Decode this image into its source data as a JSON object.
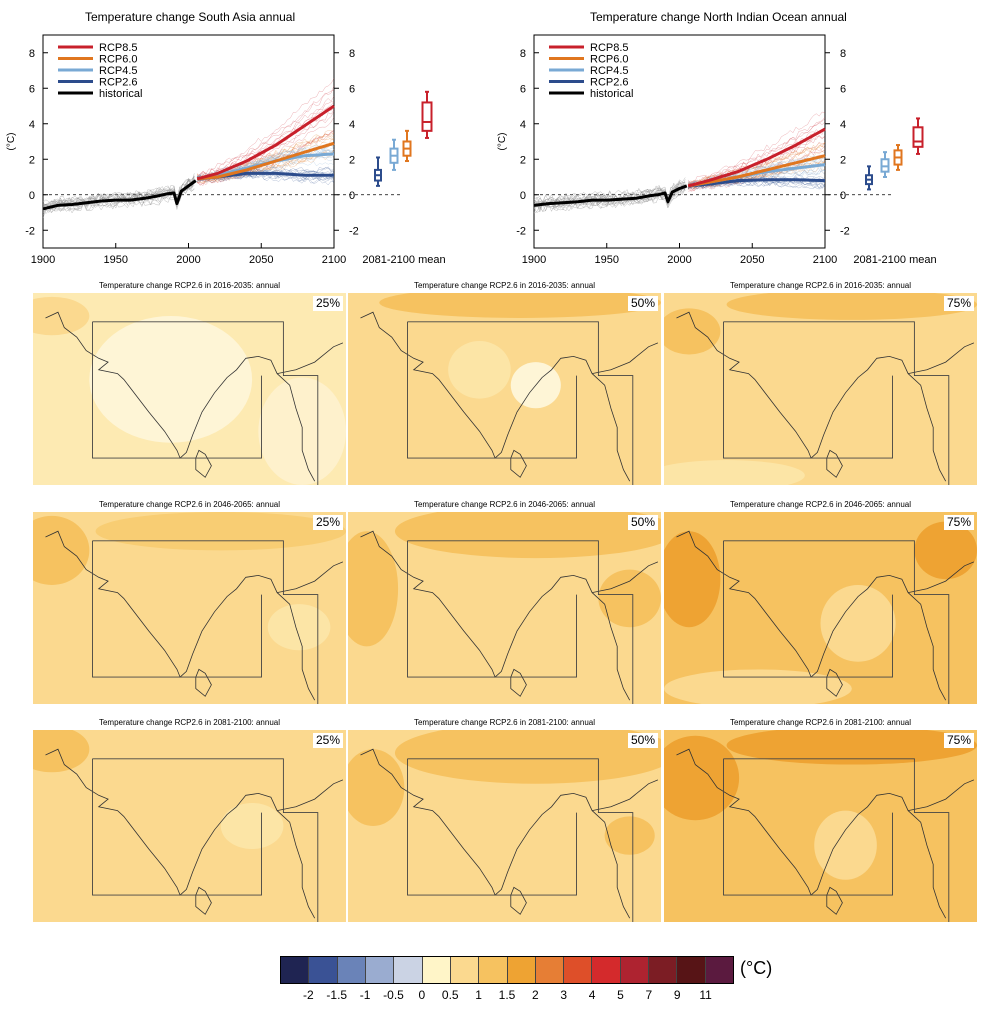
{
  "chart_data": [
    {
      "type": "line",
      "title": "Temperature change South Asia annual",
      "ylabel": "(°C)",
      "xlim": [
        1900,
        2100
      ],
      "ylim": [
        -3,
        9
      ],
      "xticks": [
        "1900",
        "1950",
        "2000",
        "2050",
        "2100"
      ],
      "yticks": [
        "-2",
        "0",
        "2",
        "4",
        "6",
        "8"
      ],
      "box_label": "2081-2100 mean",
      "legend_position": "top-left",
      "series": [
        {
          "name": "RCP8.5",
          "color": "#c8202b",
          "x": [
            2006,
            2020,
            2040,
            2060,
            2080,
            2100
          ],
          "y": [
            0.9,
            1.2,
            1.9,
            2.8,
            3.9,
            5.0
          ]
        },
        {
          "name": "RCP6.0",
          "color": "#e0761f",
          "x": [
            2006,
            2020,
            2040,
            2060,
            2080,
            2100
          ],
          "y": [
            0.9,
            1.0,
            1.4,
            1.9,
            2.4,
            2.9
          ]
        },
        {
          "name": "RCP4.5",
          "color": "#79a9d4",
          "x": [
            2006,
            2020,
            2040,
            2060,
            2080,
            2100
          ],
          "y": [
            0.9,
            1.1,
            1.5,
            1.9,
            2.2,
            2.3
          ]
        },
        {
          "name": "RCP2.6",
          "color": "#2c4c8c",
          "x": [
            2006,
            2020,
            2040,
            2060,
            2080,
            2100
          ],
          "y": [
            0.9,
            1.0,
            1.2,
            1.2,
            1.1,
            1.1
          ]
        },
        {
          "name": "historical",
          "color": "#000000",
          "x": [
            1900,
            1910,
            1920,
            1930,
            1940,
            1950,
            1960,
            1970,
            1980,
            1985,
            1990,
            1992,
            1995,
            2000,
            2005
          ],
          "y": [
            -0.8,
            -0.6,
            -0.55,
            -0.45,
            -0.35,
            -0.3,
            -0.3,
            -0.2,
            -0.05,
            0.05,
            0.1,
            -0.5,
            0.2,
            0.5,
            0.8
          ]
        }
      ],
      "boxes": [
        {
          "name": "RCP2.6",
          "min": 0.5,
          "q1": 0.8,
          "median": 1.1,
          "q3": 1.4,
          "max": 2.1
        },
        {
          "name": "RCP4.5",
          "min": 1.4,
          "q1": 1.8,
          "median": 2.2,
          "q3": 2.6,
          "max": 3.1
        },
        {
          "name": "RCP6.0",
          "min": 1.9,
          "q1": 2.2,
          "median": 2.6,
          "q3": 3.0,
          "max": 3.6
        },
        {
          "name": "RCP8.5",
          "min": 3.2,
          "q1": 3.6,
          "median": 4.1,
          "q3": 5.2,
          "max": 5.8
        }
      ]
    },
    {
      "type": "line",
      "title": "Temperature change North Indian Ocean annual",
      "ylabel": "(°C)",
      "xlim": [
        1900,
        2100
      ],
      "ylim": [
        -3,
        9
      ],
      "xticks": [
        "1900",
        "1950",
        "2000",
        "2050",
        "2100"
      ],
      "yticks": [
        "-2",
        "0",
        "2",
        "4",
        "6",
        "8"
      ],
      "box_label": "2081-2100 mean",
      "legend_position": "top-left",
      "series": [
        {
          "name": "RCP8.5",
          "color": "#c8202b",
          "x": [
            2006,
            2020,
            2040,
            2060,
            2080,
            2100
          ],
          "y": [
            0.5,
            0.8,
            1.3,
            2.0,
            2.8,
            3.7
          ]
        },
        {
          "name": "RCP6.0",
          "color": "#e0761f",
          "x": [
            2006,
            2020,
            2040,
            2060,
            2080,
            2100
          ],
          "y": [
            0.5,
            0.7,
            1.0,
            1.4,
            1.8,
            2.2
          ]
        },
        {
          "name": "RCP4.5",
          "color": "#79a9d4",
          "x": [
            2006,
            2020,
            2040,
            2060,
            2080,
            2100
          ],
          "y": [
            0.5,
            0.7,
            1.0,
            1.3,
            1.5,
            1.7
          ]
        },
        {
          "name": "RCP2.6",
          "color": "#2c4c8c",
          "x": [
            2006,
            2020,
            2040,
            2060,
            2080,
            2100
          ],
          "y": [
            0.5,
            0.6,
            0.8,
            0.85,
            0.85,
            0.8
          ]
        },
        {
          "name": "historical",
          "color": "#000000",
          "x": [
            1900,
            1910,
            1920,
            1930,
            1940,
            1950,
            1960,
            1970,
            1980,
            1985,
            1990,
            1992,
            1995,
            2000,
            2005
          ],
          "y": [
            -0.6,
            -0.5,
            -0.45,
            -0.4,
            -0.3,
            -0.3,
            -0.25,
            -0.2,
            -0.05,
            0.0,
            0.1,
            -0.4,
            0.15,
            0.35,
            0.5
          ]
        }
      ],
      "boxes": [
        {
          "name": "RCP2.6",
          "min": 0.3,
          "q1": 0.6,
          "median": 0.85,
          "q3": 1.1,
          "max": 1.6
        },
        {
          "name": "RCP4.5",
          "min": 1.0,
          "q1": 1.3,
          "median": 1.6,
          "q3": 2.0,
          "max": 2.4
        },
        {
          "name": "RCP6.0",
          "min": 1.4,
          "q1": 1.7,
          "median": 2.1,
          "q3": 2.5,
          "max": 2.8
        },
        {
          "name": "RCP8.5",
          "min": 2.3,
          "q1": 2.7,
          "median": 3.0,
          "q3": 3.8,
          "max": 4.3
        }
      ]
    },
    {
      "type": "heatmap",
      "colorbar_ticks": [
        "-2",
        "-1.5",
        "-1",
        "-0.5",
        "0",
        "0.5",
        "1",
        "1.5",
        "2",
        "3",
        "4",
        "5",
        "7",
        "9",
        "11"
      ],
      "colorbar_colors": [
        "#1f2452",
        "#3a5295",
        "#6a83b8",
        "#9aacd0",
        "#cbd3e4",
        "#fff5c8",
        "#fbd98f",
        "#f6c260",
        "#eea333",
        "#e67e35",
        "#de4f29",
        "#d42a2c",
        "#ae2330",
        "#7c1d24",
        "#571416",
        "#5b1a3f"
      ],
      "colorbar_unit": "(°C)",
      "panels": [
        {
          "title": "Temperature change RCP2.6 in 2016-2035: annual",
          "percentile": "25%",
          "base": "#fdeab2",
          "patches": [
            {
              "cx": 0.44,
              "cy": 0.45,
              "rx": 0.26,
              "ry": 0.33,
              "color": "#fef5d6"
            },
            {
              "cx": 0.86,
              "cy": 0.72,
              "rx": 0.14,
              "ry": 0.28,
              "color": "#fef1cc"
            },
            {
              "cx": 0.06,
              "cy": 0.12,
              "rx": 0.12,
              "ry": 0.1,
              "color": "#fbd98f"
            }
          ]
        },
        {
          "title": "Temperature change RCP2.6 in 2016-2035: annual",
          "percentile": "50%",
          "base": "#fbd98f",
          "patches": [
            {
              "cx": 0.6,
              "cy": 0.48,
              "rx": 0.08,
              "ry": 0.12,
              "color": "#fef5d6"
            },
            {
              "cx": 0.42,
              "cy": 0.4,
              "rx": 0.1,
              "ry": 0.15,
              "color": "#fce5a6"
            },
            {
              "cx": 0.55,
              "cy": 0.05,
              "rx": 0.45,
              "ry": 0.08,
              "color": "#f6c260"
            }
          ]
        },
        {
          "title": "Temperature change RCP2.6 in 2016-2035: annual",
          "percentile": "75%",
          "base": "#fbd98f",
          "patches": [
            {
              "cx": 0.6,
              "cy": 0.06,
              "rx": 0.4,
              "ry": 0.08,
              "color": "#f6c260"
            },
            {
              "cx": 0.08,
              "cy": 0.2,
              "rx": 0.1,
              "ry": 0.12,
              "color": "#f6c260"
            },
            {
              "cx": 0.2,
              "cy": 0.95,
              "rx": 0.25,
              "ry": 0.08,
              "color": "#fce5a6"
            }
          ]
        },
        {
          "title": "Temperature change RCP2.6 in 2046-2065: annual",
          "percentile": "25%",
          "base": "#fbd98f",
          "patches": [
            {
              "cx": 0.06,
              "cy": 0.2,
              "rx": 0.12,
              "ry": 0.18,
              "color": "#f6c260"
            },
            {
              "cx": 0.6,
              "cy": 0.1,
              "rx": 0.4,
              "ry": 0.1,
              "color": "#f8cd73"
            },
            {
              "cx": 0.85,
              "cy": 0.6,
              "rx": 0.1,
              "ry": 0.12,
              "color": "#fce5a6"
            }
          ]
        },
        {
          "title": "Temperature change RCP2.6 in 2046-2065: annual",
          "percentile": "50%",
          "base": "#fbd98f",
          "patches": [
            {
              "cx": 0.6,
              "cy": 0.1,
              "rx": 0.45,
              "ry": 0.14,
              "color": "#f6c260"
            },
            {
              "cx": 0.06,
              "cy": 0.4,
              "rx": 0.1,
              "ry": 0.3,
              "color": "#f6c260"
            },
            {
              "cx": 0.9,
              "cy": 0.45,
              "rx": 0.1,
              "ry": 0.15,
              "color": "#f6c260"
            }
          ]
        },
        {
          "title": "Temperature change RCP2.6 in 2046-2065: annual",
          "percentile": "75%",
          "base": "#f6c260",
          "patches": [
            {
              "cx": 0.62,
              "cy": 0.58,
              "rx": 0.12,
              "ry": 0.2,
              "color": "#fbd98f"
            },
            {
              "cx": 0.3,
              "cy": 0.92,
              "rx": 0.3,
              "ry": 0.1,
              "color": "#fbd98f"
            },
            {
              "cx": 0.08,
              "cy": 0.35,
              "rx": 0.1,
              "ry": 0.25,
              "color": "#eea333"
            },
            {
              "cx": 0.9,
              "cy": 0.2,
              "rx": 0.1,
              "ry": 0.15,
              "color": "#eea333"
            }
          ]
        },
        {
          "title": "Temperature change RCP2.6 in 2081-2100: annual",
          "percentile": "25%",
          "base": "#fbd98f",
          "patches": [
            {
              "cx": 0.06,
              "cy": 0.1,
              "rx": 0.12,
              "ry": 0.12,
              "color": "#f6c260"
            },
            {
              "cx": 0.7,
              "cy": 0.5,
              "rx": 0.1,
              "ry": 0.12,
              "color": "#fce5a6"
            }
          ]
        },
        {
          "title": "Temperature change RCP2.6 in 2081-2100: annual",
          "percentile": "50%",
          "base": "#fbd98f",
          "patches": [
            {
              "cx": 0.6,
              "cy": 0.12,
              "rx": 0.45,
              "ry": 0.16,
              "color": "#f6c260"
            },
            {
              "cx": 0.08,
              "cy": 0.3,
              "rx": 0.1,
              "ry": 0.2,
              "color": "#f6c260"
            },
            {
              "cx": 0.9,
              "cy": 0.55,
              "rx": 0.08,
              "ry": 0.1,
              "color": "#f6c260"
            }
          ]
        },
        {
          "title": "Temperature change RCP2.6 in 2081-2100: annual",
          "percentile": "75%",
          "base": "#f6c260",
          "patches": [
            {
              "cx": 0.58,
              "cy": 0.6,
              "rx": 0.1,
              "ry": 0.18,
              "color": "#fbd98f"
            },
            {
              "cx": 0.1,
              "cy": 0.25,
              "rx": 0.14,
              "ry": 0.22,
              "color": "#eea333"
            },
            {
              "cx": 0.6,
              "cy": 0.08,
              "rx": 0.4,
              "ry": 0.1,
              "color": "#eea333"
            }
          ]
        }
      ]
    }
  ]
}
